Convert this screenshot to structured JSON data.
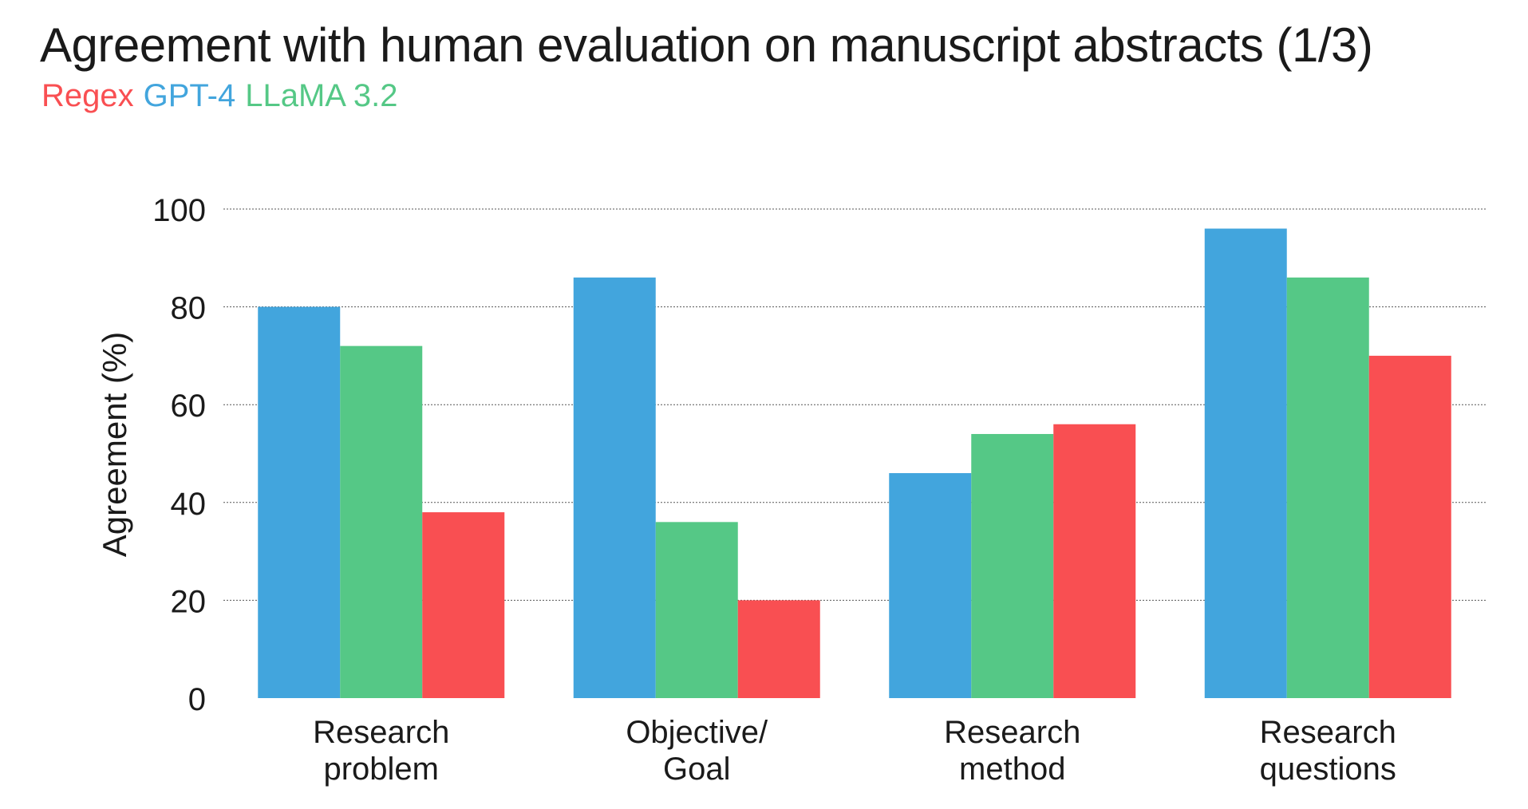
{
  "chart_data": {
    "type": "bar",
    "title": "Agreement with human evaluation on manuscript abstracts (1/3)",
    "legend_position": "top-left, below title",
    "legend": [
      {
        "label": "Regex",
        "color": "#f94f52"
      },
      {
        "label": "GPT-4",
        "color": "#42a5dd"
      },
      {
        "label": "LLaMA 3.2",
        "color": "#55c886"
      }
    ],
    "ylabel": "Agreement (%)",
    "xlabel": "",
    "ylim": [
      0,
      100
    ],
    "yticks": [
      "0",
      "20",
      "40",
      "60",
      "80",
      "100"
    ],
    "grid": true,
    "categories": [
      [
        "Research",
        "problem"
      ],
      [
        "Objective/",
        "Goal"
      ],
      [
        "Research",
        "method"
      ],
      [
        "Research",
        "questions"
      ]
    ],
    "series": [
      {
        "name": "GPT-4",
        "color": "#42a5dd",
        "values": [
          80,
          86,
          46,
          96
        ]
      },
      {
        "name": "LLaMA 3.2",
        "color": "#55c886",
        "values": [
          72,
          36,
          54,
          86
        ]
      },
      {
        "name": "Regex",
        "color": "#f94f52",
        "values": [
          38,
          20,
          56,
          70
        ]
      }
    ]
  }
}
